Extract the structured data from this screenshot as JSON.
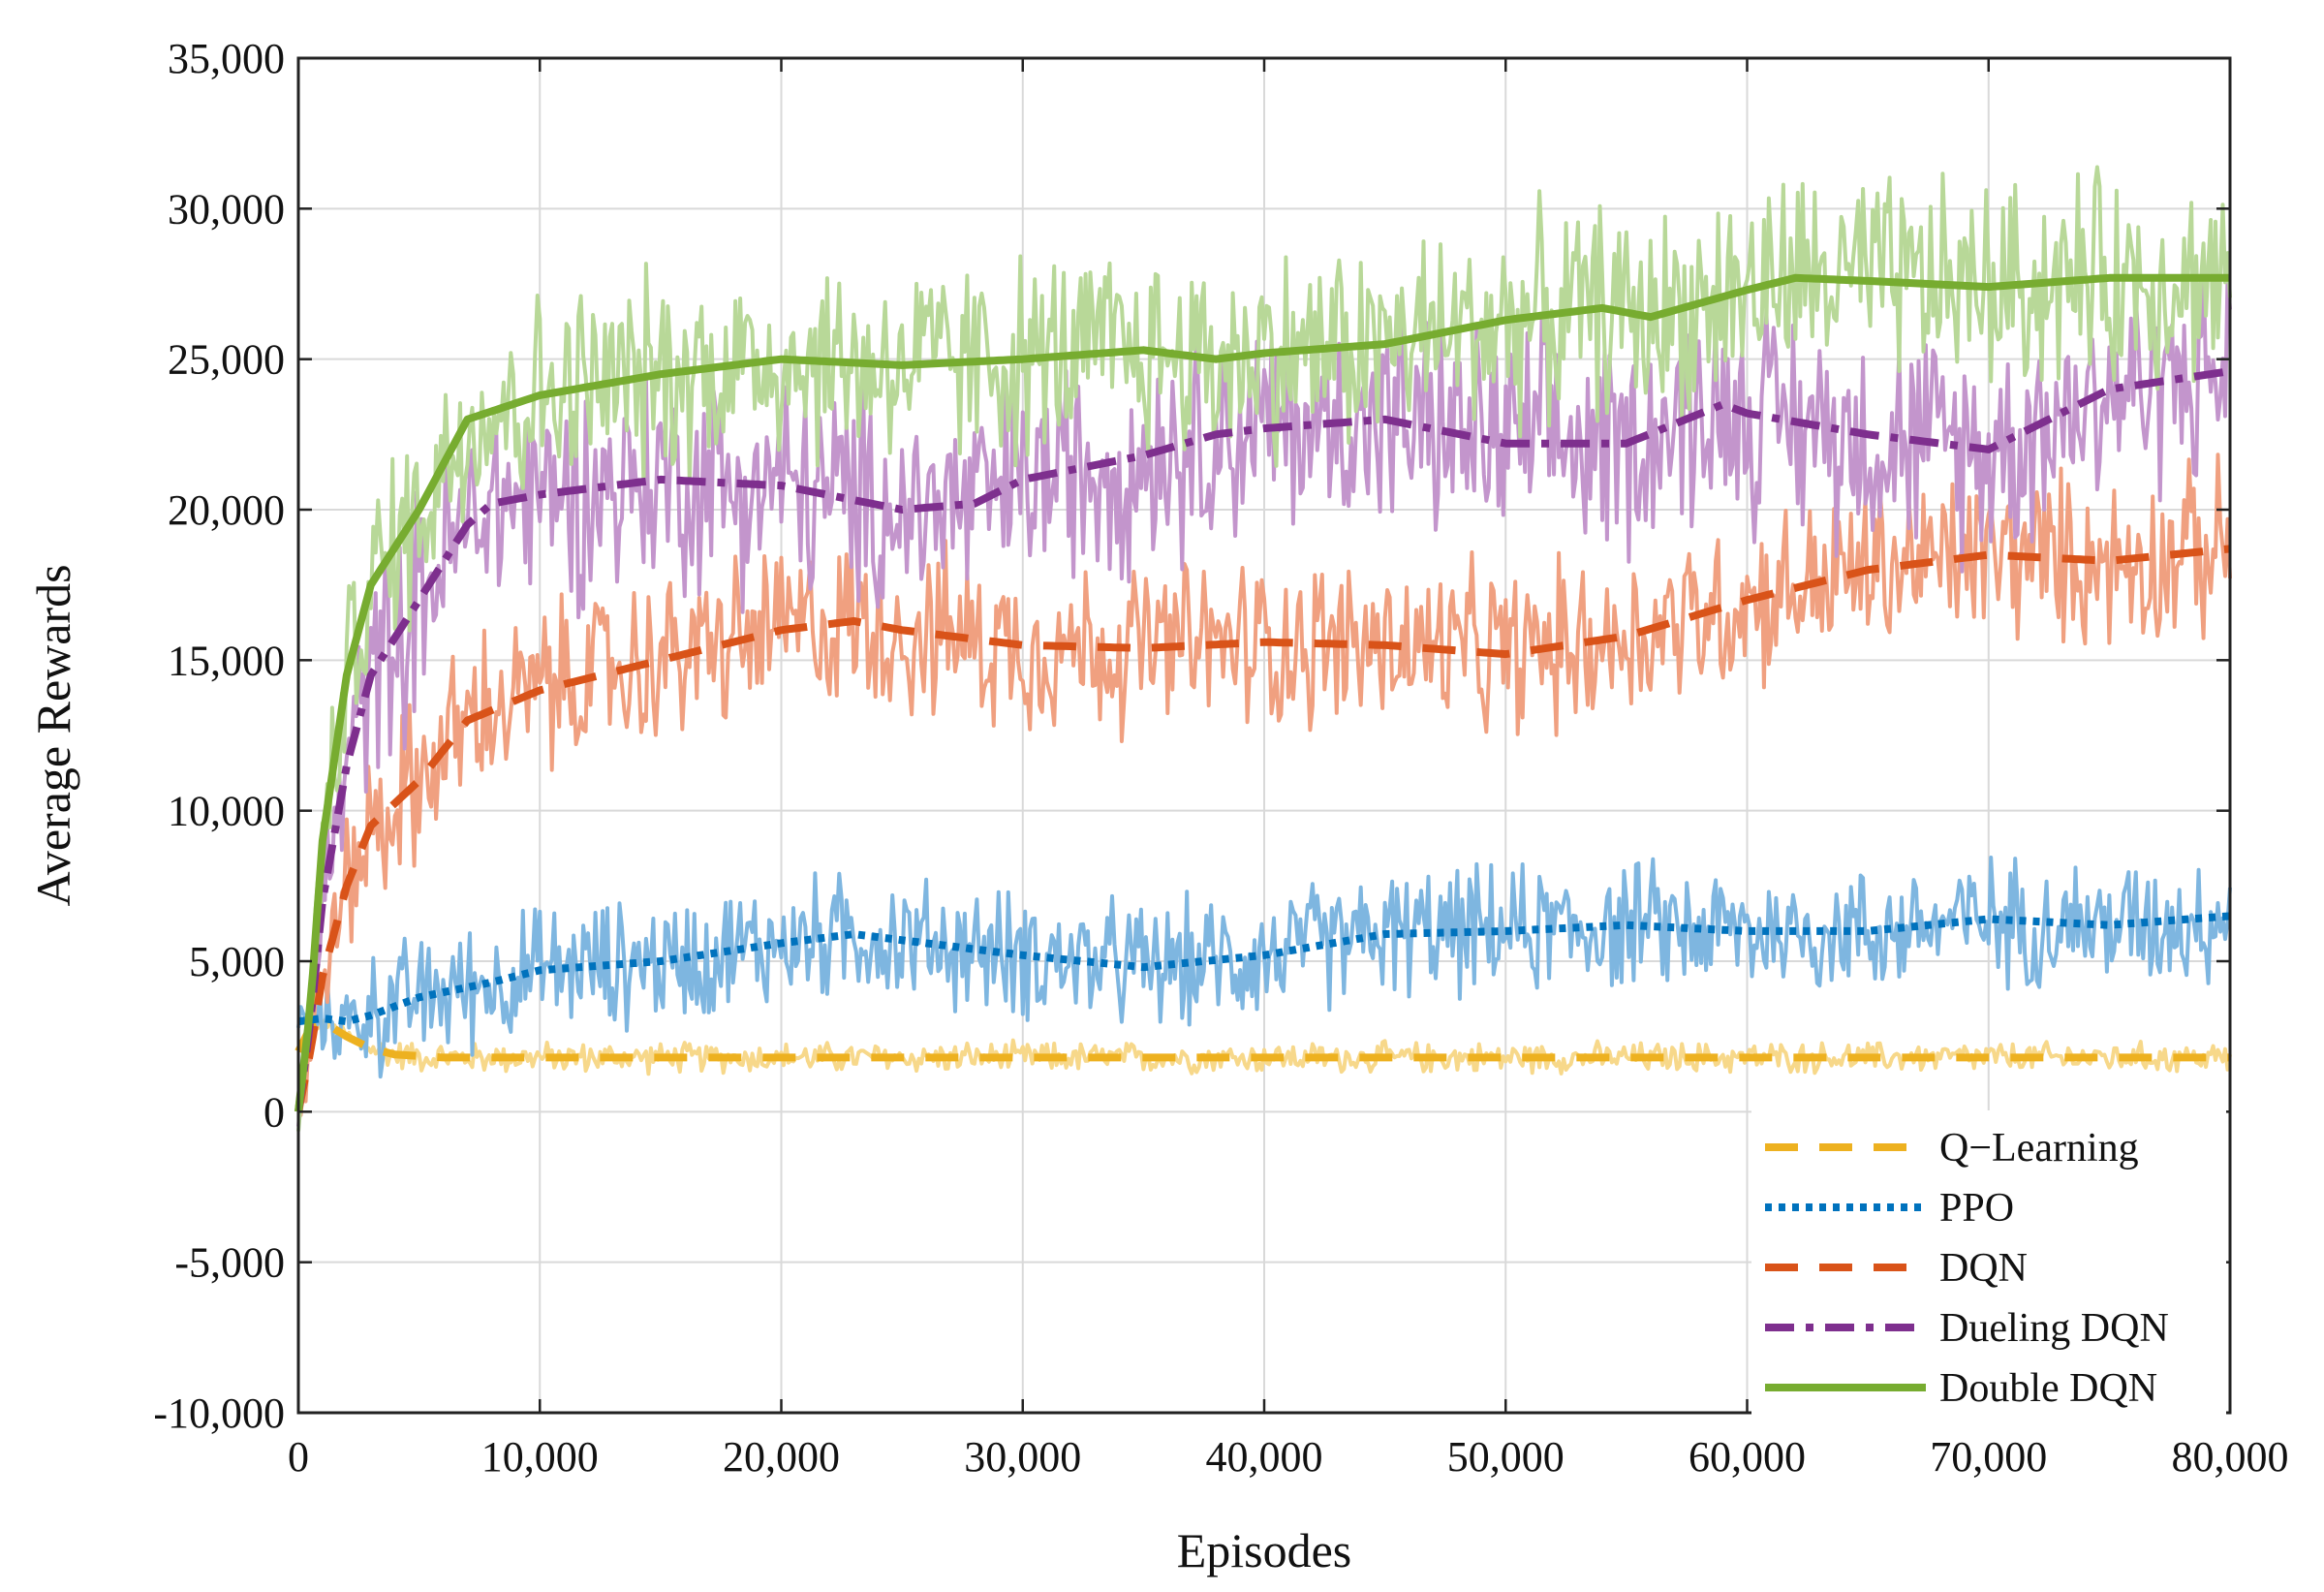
{
  "chart_data": {
    "type": "line",
    "xlabel": "Episodes",
    "ylabel": "Average Rewards",
    "xlim": [
      0,
      80000
    ],
    "ylim": [
      -10000,
      35000
    ],
    "grid": true,
    "legend_position": "bottom-right",
    "x_ticks": [
      0,
      10000,
      20000,
      30000,
      40000,
      50000,
      60000,
      70000,
      80000
    ],
    "x_tick_labels": [
      "0",
      "10,000",
      "20,000",
      "30,000",
      "40,000",
      "50,000",
      "60,000",
      "70,000",
      "80,000"
    ],
    "y_ticks": [
      35000,
      30000,
      25000,
      20000,
      15000,
      10000,
      5000,
      0,
      -5000,
      -10000
    ],
    "y_tick_labels": [
      "35,000",
      "30,000",
      "25,000",
      "20,000",
      "15,000",
      "10,000",
      "5,000",
      "0",
      "-5,000",
      "-10,000"
    ],
    "series": [
      {
        "name": "Q−Learning",
        "line_color": "#EDB120",
        "raw_color": "#F7D88A",
        "dash": "dashed",
        "noise": 400,
        "x": [
          0,
          500,
          1000,
          2000,
          3000,
          4000,
          5000,
          6000,
          8000,
          10000,
          20000,
          30000,
          40000,
          50000,
          60000,
          70000,
          80000
        ],
        "y": [
          2000,
          2800,
          3000,
          2500,
          2100,
          1900,
          1850,
          1800,
          1800,
          1800,
          1800,
          1800,
          1800,
          1800,
          1800,
          1800,
          1800
        ]
      },
      {
        "name": "PPO",
        "line_color": "#0072BD",
        "raw_color": "#7EB6E0",
        "dash": "dotted",
        "noise": 1700,
        "x": [
          0,
          1000,
          2000,
          3000,
          5000,
          8000,
          10000,
          15000,
          20000,
          23000,
          25000,
          30000,
          35000,
          40000,
          45000,
          50000,
          55000,
          60000,
          65000,
          70000,
          75000,
          80000
        ],
        "y": [
          3000,
          3100,
          3000,
          3200,
          3800,
          4300,
          4700,
          5000,
          5600,
          5900,
          5700,
          5200,
          4800,
          5200,
          5900,
          6000,
          6200,
          6000,
          6000,
          6400,
          6200,
          6500
        ]
      },
      {
        "name": "DQN",
        "line_color": "#D95319",
        "raw_color": "#F0A080",
        "dash": "dashed",
        "noise": 2300,
        "x": [
          0,
          500,
          1000,
          2000,
          3000,
          5000,
          7000,
          10000,
          15000,
          20000,
          23000,
          25000,
          30000,
          35000,
          40000,
          45000,
          50000,
          55000,
          60000,
          65000,
          70000,
          75000,
          80000
        ],
        "y": [
          0,
          2000,
          4500,
          7500,
          9500,
          11000,
          13000,
          14000,
          15000,
          16000,
          16300,
          16000,
          15500,
          15400,
          15600,
          15500,
          15200,
          15800,
          17000,
          18000,
          18500,
          18300,
          18700
        ]
      },
      {
        "name": "Dueling DQN",
        "line_color": "#7E2F8E",
        "raw_color": "#C395CC",
        "dash": "dashdot",
        "noise": 3000,
        "x": [
          0,
          500,
          1000,
          2000,
          3000,
          5000,
          7000,
          8000,
          10000,
          15000,
          20000,
          25000,
          28000,
          30000,
          35000,
          38000,
          40000,
          45000,
          50000,
          55000,
          59000,
          60000,
          65000,
          70000,
          75000,
          80000
        ],
        "y": [
          0,
          3000,
          7000,
          11500,
          14500,
          17000,
          19500,
          20200,
          20500,
          21000,
          20800,
          20000,
          20200,
          21000,
          21800,
          22500,
          22700,
          23000,
          22200,
          22200,
          23500,
          23200,
          22500,
          22000,
          24000,
          24600
        ]
      },
      {
        "name": "Double DQN",
        "line_color": "#77AC30",
        "raw_color": "#B8D898",
        "dash": "solid",
        "noise": 2800,
        "x": [
          0,
          500,
          1000,
          2000,
          3000,
          5000,
          7000,
          10000,
          15000,
          20000,
          25000,
          30000,
          35000,
          38000,
          40000,
          45000,
          50000,
          54000,
          56000,
          60000,
          62000,
          65000,
          70000,
          75000,
          80000
        ],
        "y": [
          0,
          3500,
          9000,
          14500,
          17500,
          20000,
          23000,
          23800,
          24500,
          25000,
          24800,
          25000,
          25300,
          25000,
          25200,
          25500,
          26300,
          26700,
          26400,
          27300,
          27700,
          27600,
          27400,
          27700,
          27700
        ]
      }
    ]
  }
}
